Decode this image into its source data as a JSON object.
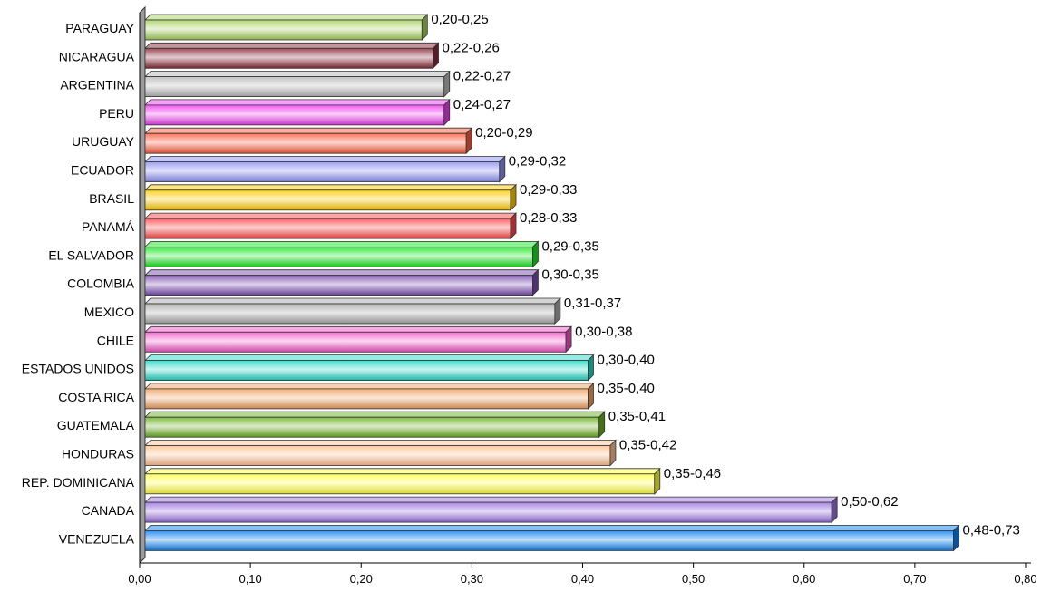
{
  "chart_data": {
    "type": "bar",
    "orientation": "horizontal",
    "title": "",
    "xlabel": "",
    "ylabel": "",
    "xlim": [
      0,
      0.8
    ],
    "grid": false,
    "legend": "none",
    "ticks": [
      "0,00",
      "0,10",
      "0,20",
      "0,30",
      "0,40",
      "0,50",
      "0,60",
      "0,70",
      "0,80"
    ],
    "tick_values": [
      0,
      0.1,
      0.2,
      0.3,
      0.4,
      0.5,
      0.6,
      0.7,
      0.8
    ],
    "bars": [
      {
        "category": "PARAGUAY",
        "value": 0.25,
        "label": "0,20-0,25",
        "color": "#a6d05a"
      },
      {
        "category": "NICARAGUA",
        "value": 0.26,
        "label": "0,22-0,26",
        "color": "#8a2a3a"
      },
      {
        "category": "ARGENTINA",
        "value": 0.27,
        "label": "0,22-0,27",
        "color": "#b8b8b8"
      },
      {
        "category": "PERU",
        "value": 0.27,
        "label": "0,24-0,27",
        "color": "#ee3cf0"
      },
      {
        "category": "URUGUAY",
        "value": 0.29,
        "label": "0,20-0,29",
        "color": "#ff5b3a"
      },
      {
        "category": "ECUADOR",
        "value": 0.32,
        "label": "0,29-0,32",
        "color": "#8b90f2"
      },
      {
        "category": "BRASIL",
        "value": 0.33,
        "label": "0,29-0,33",
        "color": "#ffcc00"
      },
      {
        "category": "PANAMÁ",
        "value": 0.33,
        "label": "0,28-0,33",
        "color": "#ff4848"
      },
      {
        "category": "EL SALVADOR",
        "value": 0.35,
        "label": "0,29-0,35",
        "color": "#16e51e"
      },
      {
        "category": "COLOMBIA",
        "value": 0.35,
        "label": "0,30-0,35",
        "color": "#7a4ab0"
      },
      {
        "category": "MEXICO",
        "value": 0.37,
        "label": "0,31-0,37",
        "color": "#a8a8a8"
      },
      {
        "category": "CHILE",
        "value": 0.38,
        "label": "0,30-0,38",
        "color": "#f255c8"
      },
      {
        "category": "ESTADOS UNIDOS",
        "value": 0.4,
        "label": "0,30-0,40",
        "color": "#22d8c4"
      },
      {
        "category": "COSTA RICA",
        "value": 0.4,
        "label": "0,35-0,40",
        "color": "#f0a060"
      },
      {
        "category": "GUATEMALA",
        "value": 0.41,
        "label": "0,35-0,41",
        "color": "#6ab020"
      },
      {
        "category": "HONDURAS",
        "value": 0.42,
        "label": "0,35-0,42",
        "color": "#ffc090"
      },
      {
        "category": "REP. DOMINICANA",
        "value": 0.46,
        "label": "0,35-0,46",
        "color": "#ffff40"
      },
      {
        "category": "CANADA",
        "value": 0.62,
        "label": "0,50-0,62",
        "color": "#9a70e0"
      },
      {
        "category": "VENEZUELA",
        "value": 0.73,
        "label": "0,48-0,73",
        "color": "#0a80f0"
      }
    ]
  }
}
